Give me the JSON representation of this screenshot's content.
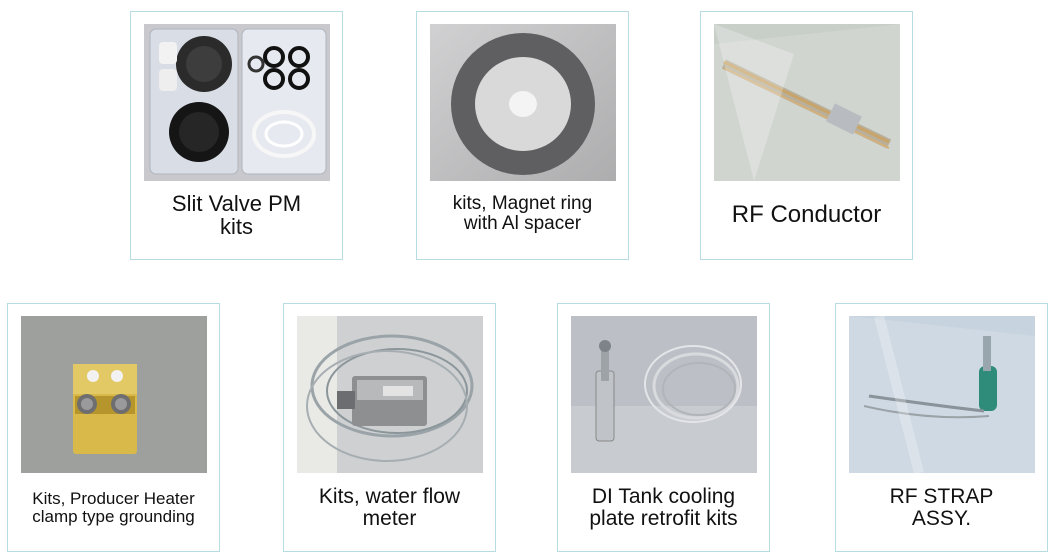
{
  "items": [
    {
      "caption": "Slit Valve PM\nkits",
      "icon": "slit-valve-kit-photo"
    },
    {
      "caption": "kits, Magnet ring\nwith Al spacer",
      "icon": "magnet-ring-photo"
    },
    {
      "caption": "RF Conductor",
      "icon": "rf-conductor-photo"
    },
    {
      "caption": "Kits, Producer Heater\nclamp type grounding",
      "icon": "heater-clamp-photo"
    },
    {
      "caption": "Kits, water flow\nmeter",
      "icon": "water-flow-meter-photo"
    },
    {
      "caption": "DI Tank cooling\nplate retrofit kits",
      "icon": "cooling-plate-photo"
    },
    {
      "caption": "RF STRAP\nASSY.",
      "icon": "rf-strap-photo"
    }
  ],
  "colors": {
    "card_border": "#b7dde3"
  }
}
